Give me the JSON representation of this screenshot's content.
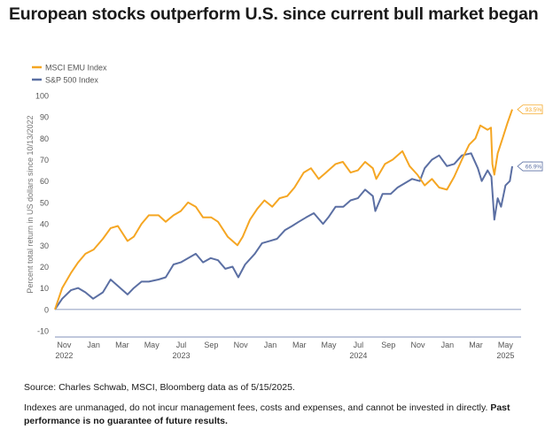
{
  "title": "European stocks outperform U.S. since current bull market began",
  "source": "Source: Charles Schwab, MSCI, Bloomberg data as of 5/15/2025.",
  "note_text": "Indexes are unmanaged, do not incur management fees, costs and expenses, and cannot be invested in directly. ",
  "note_bold": "Past performance is no guarantee of future results.",
  "chart_data": {
    "type": "line",
    "ylabel": "Percent total return in US dollars since 10/13/2022",
    "ylim": [
      -10,
      100
    ],
    "yticks": [
      -10,
      0,
      10,
      20,
      30,
      40,
      50,
      60,
      70,
      80,
      90,
      100
    ],
    "xticks": [
      {
        "month": "Nov",
        "year": "2022",
        "x": "2022-11"
      },
      {
        "month": "Jan",
        "year": "",
        "x": "2023-01"
      },
      {
        "month": "Mar",
        "year": "",
        "x": "2023-03"
      },
      {
        "month": "May",
        "year": "",
        "x": "2023-05"
      },
      {
        "month": "Jul",
        "year": "2023",
        "x": "2023-07"
      },
      {
        "month": "Sep",
        "year": "",
        "x": "2023-09"
      },
      {
        "month": "Nov",
        "year": "",
        "x": "2023-11"
      },
      {
        "month": "Jan",
        "year": "",
        "x": "2024-01"
      },
      {
        "month": "Mar",
        "year": "",
        "x": "2024-03"
      },
      {
        "month": "May",
        "year": "",
        "x": "2024-05"
      },
      {
        "month": "Jul",
        "year": "2024",
        "x": "2024-07"
      },
      {
        "month": "Sep",
        "year": "",
        "x": "2024-09"
      },
      {
        "month": "Nov",
        "year": "",
        "x": "2024-11"
      },
      {
        "month": "Jan",
        "year": "",
        "x": "2025-01"
      },
      {
        "month": "Mar",
        "year": "",
        "x": "2025-03"
      },
      {
        "month": "May",
        "year": "2025",
        "x": "2025-05"
      }
    ],
    "xrange": [
      "2022-10-13",
      "2025-05-15"
    ],
    "grid": false,
    "legend_position": "top-left",
    "series": [
      {
        "name": "MSCI EMU Index",
        "color": "#f5a623",
        "end_label": "93.5%",
        "points": [
          [
            "2022-10-13",
            0
          ],
          [
            "2022-10-28",
            10
          ],
          [
            "2022-11-15",
            17
          ],
          [
            "2022-11-30",
            22
          ],
          [
            "2022-12-15",
            26
          ],
          [
            "2023-01-01",
            28
          ],
          [
            "2023-01-20",
            33
          ],
          [
            "2023-02-05",
            38
          ],
          [
            "2023-02-20",
            39
          ],
          [
            "2023-03-12",
            32
          ],
          [
            "2023-03-25",
            34
          ],
          [
            "2023-04-10",
            40
          ],
          [
            "2023-04-25",
            44
          ],
          [
            "2023-05-15",
            44
          ],
          [
            "2023-05-30",
            41
          ],
          [
            "2023-06-15",
            44
          ],
          [
            "2023-06-30",
            46
          ],
          [
            "2023-07-15",
            50
          ],
          [
            "2023-07-31",
            48
          ],
          [
            "2023-08-15",
            43
          ],
          [
            "2023-09-01",
            43
          ],
          [
            "2023-09-15",
            41
          ],
          [
            "2023-10-05",
            34
          ],
          [
            "2023-10-25",
            30
          ],
          [
            "2023-11-05",
            34
          ],
          [
            "2023-11-20",
            42
          ],
          [
            "2023-12-05",
            47
          ],
          [
            "2023-12-20",
            51
          ],
          [
            "2024-01-05",
            48
          ],
          [
            "2024-01-20",
            52
          ],
          [
            "2024-02-05",
            53
          ],
          [
            "2024-02-20",
            57
          ],
          [
            "2024-03-10",
            64
          ],
          [
            "2024-03-25",
            66
          ],
          [
            "2024-04-10",
            61
          ],
          [
            "2024-04-25",
            64
          ],
          [
            "2024-05-15",
            68
          ],
          [
            "2024-05-30",
            69
          ],
          [
            "2024-06-15",
            64
          ],
          [
            "2024-06-30",
            65
          ],
          [
            "2024-07-15",
            69
          ],
          [
            "2024-07-31",
            66
          ],
          [
            "2024-08-07",
            61
          ],
          [
            "2024-08-25",
            68
          ],
          [
            "2024-09-10",
            70
          ],
          [
            "2024-09-30",
            74
          ],
          [
            "2024-10-15",
            67
          ],
          [
            "2024-10-31",
            63
          ],
          [
            "2024-11-15",
            58
          ],
          [
            "2024-11-30",
            61
          ],
          [
            "2024-12-15",
            57
          ],
          [
            "2024-12-31",
            56
          ],
          [
            "2025-01-15",
            62
          ],
          [
            "2025-01-31",
            70
          ],
          [
            "2025-02-15",
            77
          ],
          [
            "2025-02-28",
            80
          ],
          [
            "2025-03-10",
            86
          ],
          [
            "2025-03-25",
            84
          ],
          [
            "2025-04-01",
            85
          ],
          [
            "2025-04-04",
            68
          ],
          [
            "2025-04-08",
            63
          ],
          [
            "2025-04-15",
            73
          ],
          [
            "2025-04-25",
            80
          ],
          [
            "2025-05-05",
            87
          ],
          [
            "2025-05-15",
            93.5
          ]
        ]
      },
      {
        "name": "S&P 500 Index",
        "color": "#5b6fa3",
        "end_label": "66.9%",
        "points": [
          [
            "2022-10-13",
            0
          ],
          [
            "2022-10-28",
            5
          ],
          [
            "2022-11-15",
            9
          ],
          [
            "2022-11-30",
            10
          ],
          [
            "2022-12-15",
            8
          ],
          [
            "2022-12-31",
            5
          ],
          [
            "2023-01-20",
            8
          ],
          [
            "2023-02-05",
            14
          ],
          [
            "2023-02-20",
            11
          ],
          [
            "2023-03-12",
            7
          ],
          [
            "2023-03-25",
            10
          ],
          [
            "2023-04-10",
            13
          ],
          [
            "2023-04-25",
            13
          ],
          [
            "2023-05-15",
            14
          ],
          [
            "2023-05-30",
            15
          ],
          [
            "2023-06-15",
            21
          ],
          [
            "2023-06-30",
            22
          ],
          [
            "2023-07-31",
            26
          ],
          [
            "2023-08-15",
            22
          ],
          [
            "2023-08-31",
            24
          ],
          [
            "2023-09-15",
            23
          ],
          [
            "2023-09-30",
            19
          ],
          [
            "2023-10-15",
            20
          ],
          [
            "2023-10-27",
            15
          ],
          [
            "2023-11-10",
            21
          ],
          [
            "2023-11-30",
            26
          ],
          [
            "2023-12-15",
            31
          ],
          [
            "2023-12-31",
            32
          ],
          [
            "2024-01-15",
            33
          ],
          [
            "2024-01-31",
            37
          ],
          [
            "2024-02-15",
            39
          ],
          [
            "2024-02-29",
            41
          ],
          [
            "2024-03-15",
            43
          ],
          [
            "2024-03-31",
            45
          ],
          [
            "2024-04-19",
            40
          ],
          [
            "2024-04-30",
            43
          ],
          [
            "2024-05-15",
            48
          ],
          [
            "2024-05-31",
            48
          ],
          [
            "2024-06-15",
            51
          ],
          [
            "2024-06-30",
            52
          ],
          [
            "2024-07-15",
            56
          ],
          [
            "2024-07-31",
            53
          ],
          [
            "2024-08-05",
            46
          ],
          [
            "2024-08-20",
            54
          ],
          [
            "2024-09-06",
            54
          ],
          [
            "2024-09-20",
            57
          ],
          [
            "2024-10-05",
            59
          ],
          [
            "2024-10-20",
            61
          ],
          [
            "2024-11-05",
            60
          ],
          [
            "2024-11-15",
            66
          ],
          [
            "2024-11-30",
            70
          ],
          [
            "2024-12-15",
            72
          ],
          [
            "2024-12-31",
            67
          ],
          [
            "2025-01-15",
            68
          ],
          [
            "2025-01-31",
            72
          ],
          [
            "2025-02-19",
            73
          ],
          [
            "2025-03-05",
            66
          ],
          [
            "2025-03-13",
            60
          ],
          [
            "2025-03-25",
            65
          ],
          [
            "2025-04-02",
            62
          ],
          [
            "2025-04-08",
            42
          ],
          [
            "2025-04-15",
            52
          ],
          [
            "2025-04-22",
            48
          ],
          [
            "2025-05-01",
            58
          ],
          [
            "2025-05-10",
            60
          ],
          [
            "2025-05-15",
            66.9
          ]
        ]
      }
    ]
  }
}
